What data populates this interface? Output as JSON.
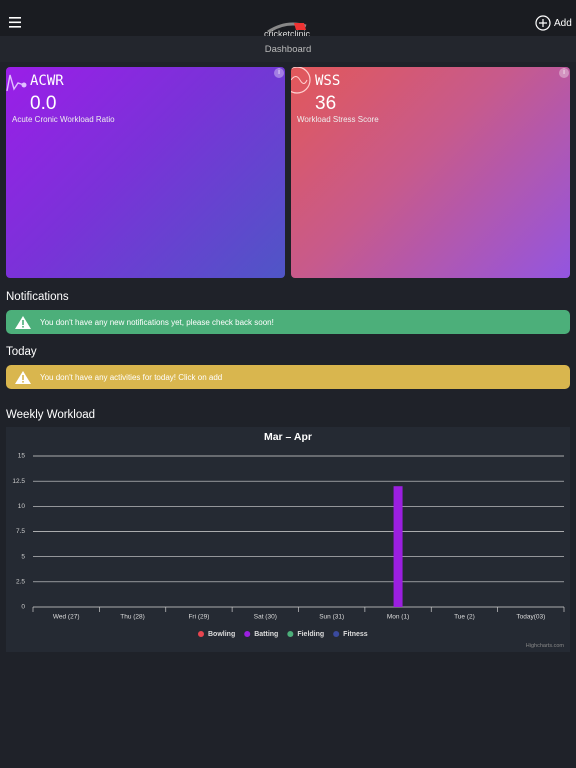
{
  "header": {
    "logo": "cricketclinic",
    "add": "Add",
    "page_title": "Dashboard"
  },
  "cards": [
    {
      "name": "ACWR",
      "value": "0.0",
      "description": "Acute Cronic Workload Ratio"
    },
    {
      "name": "WSS",
      "value": 36,
      "description": "Workload Stress Score"
    }
  ],
  "notifications": {
    "title": "Notifications",
    "message": "You don't have any new notifications yet, please check back soon!"
  },
  "today": {
    "title": "Today",
    "message": "You don't have any activities for today! Click on add"
  },
  "weekly_workload": {
    "title": "Weekly Workload",
    "credit": "Highcharts.com"
  },
  "chart_data": {
    "type": "stacked-bar",
    "title": "Mar – Apr",
    "categories": [
      "Wed (27)",
      "Thu (28)",
      "Fri (29)",
      "Sat (30)",
      "Sun (31)",
      "Mon (1)",
      "Tue (2)",
      "Today(03)"
    ],
    "series": [
      {
        "name": "Bowling",
        "color": "#e8454f",
        "values": [
          0,
          0,
          0,
          0,
          0,
          0,
          0,
          0
        ]
      },
      {
        "name": "Batting",
        "color": "#9b1fe0",
        "values": [
          0,
          0,
          0,
          0,
          0,
          12,
          0,
          0
        ]
      },
      {
        "name": "Fielding",
        "color": "#4caf7a",
        "values": [
          0,
          0,
          0,
          0,
          0,
          0,
          0,
          0
        ]
      },
      {
        "name": "Fitness",
        "color": "#3a4a9e",
        "values": [
          0,
          0,
          0,
          0,
          0,
          0,
          0,
          0
        ]
      }
    ],
    "ylim": [
      0,
      15
    ],
    "yticks": [
      0,
      2.5,
      5,
      7.5,
      10,
      12.5,
      15
    ],
    "grid": true
  }
}
